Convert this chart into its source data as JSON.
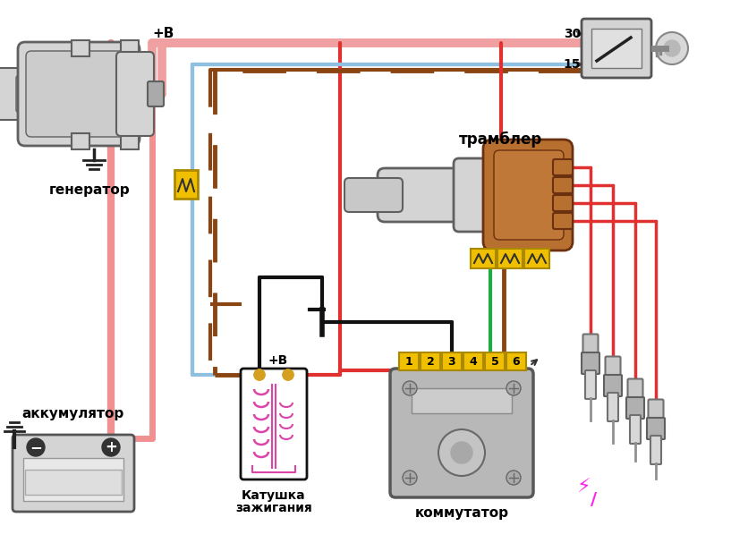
{
  "bg_color": "#ffffff",
  "labels": {
    "generator": "генератор",
    "battery": "аккумулятор",
    "trambler": "трамблер",
    "coil_line1": "Катушка",
    "coil_line2": "зажигания",
    "commutator": "коммутатор",
    "plus_v_top": "+В",
    "plus_v_coil": "+В",
    "terminal_30": "30",
    "terminal_15": "15",
    "pin_labels": [
      "1",
      "2",
      "3",
      "4",
      "5",
      "6"
    ]
  },
  "colors": {
    "red": "#e03030",
    "pink": "#f0a0a0",
    "blue": "#90c0e0",
    "brown": "#8B4513",
    "green": "#22aa44",
    "black": "#111111",
    "yellow": "#f0c000",
    "gray_light": "#d4d4d4",
    "gray_med": "#aaaaaa",
    "gray_dark": "#606060",
    "gray_body": "#b8b8b8",
    "orange_brown": "#b87030",
    "dark_brown": "#6B3010",
    "magenta": "#dd44aa",
    "white": "#ffffff",
    "gold": "#d4a020",
    "wire_pink": "#f09090"
  }
}
